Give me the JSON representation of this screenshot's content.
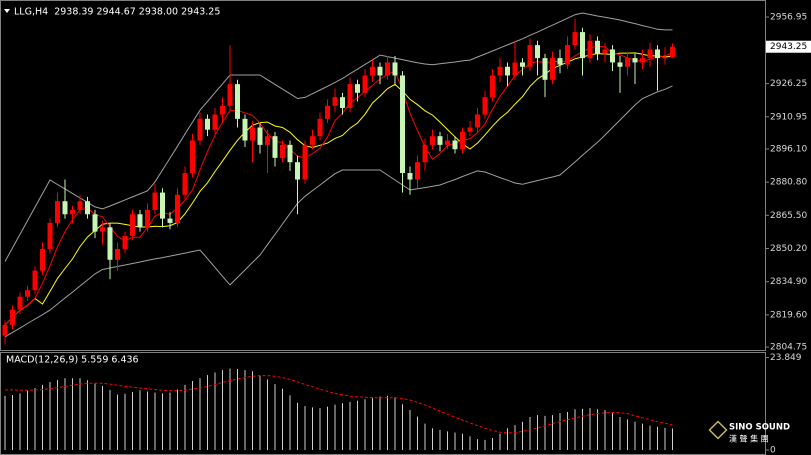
{
  "chart_data": [
    {
      "type": "candlestick",
      "title": "LLG,H4  2938.39 2944.67 2938.00 2943.25",
      "up_color": "#ff0000",
      "down_color": "#c6f5b4",
      "open": [
        2810,
        2815,
        2822,
        2828,
        2831,
        2840,
        2850,
        2862,
        2872,
        2866,
        2868,
        2872,
        2866,
        2858,
        2860,
        2845,
        2850,
        2856,
        2866,
        2860,
        2868,
        2876,
        2864,
        2862,
        2875,
        2885,
        2900,
        2910,
        2905,
        2912,
        2916,
        2926,
        2910,
        2900,
        2906,
        2898,
        2902,
        2892,
        2898,
        2890,
        2882,
        2898,
        2902,
        2910,
        2916,
        2920,
        2915,
        2926,
        2922,
        2930,
        2934,
        2930,
        2936,
        2930,
        2885,
        2882,
        2890,
        2898,
        2902,
        2898,
        2900,
        2896,
        2904,
        2906,
        2912,
        2920,
        2930,
        2934,
        2930,
        2936,
        2934,
        2944,
        2938,
        2928,
        2938,
        2935,
        2944,
        2950,
        2938,
        2946,
        2940,
        2942,
        2936,
        2934,
        2938,
        2936,
        2938,
        2942,
        2938,
        2938.39
      ],
      "high": [
        2817,
        2824,
        2830,
        2833,
        2842,
        2853,
        2864,
        2876,
        2882,
        2870,
        2875,
        2874,
        2868,
        2863,
        2862,
        2853,
        2858,
        2868,
        2868,
        2871,
        2880,
        2878,
        2867,
        2878,
        2888,
        2903,
        2913,
        2912,
        2915,
        2920,
        2944,
        2928,
        2912,
        2909,
        2908,
        2905,
        2904,
        2900,
        2900,
        2893,
        2900,
        2905,
        2913,
        2919,
        2924,
        2922,
        2929,
        2928,
        2933,
        2937,
        2936,
        2939,
        2939,
        2932,
        2888,
        2893,
        2901,
        2905,
        2904,
        2903,
        2902,
        2906,
        2909,
        2915,
        2923,
        2933,
        2938,
        2936,
        2946,
        2938,
        2947,
        2946,
        2940,
        2941,
        2942,
        2948,
        2956,
        2952,
        2949,
        2948,
        2945,
        2944,
        2939,
        2941,
        2940,
        2942,
        2945,
        2944,
        2943,
        2944.67
      ],
      "low": [
        2806,
        2813,
        2820,
        2826,
        2829,
        2838,
        2848,
        2860,
        2864,
        2862,
        2866,
        2864,
        2855,
        2852,
        2836,
        2840,
        2848,
        2854,
        2858,
        2858,
        2866,
        2860,
        2859,
        2860,
        2873,
        2883,
        2898,
        2902,
        2903,
        2908,
        2914,
        2906,
        2897,
        2890,
        2894,
        2885,
        2888,
        2890,
        2886,
        2866,
        2880,
        2896,
        2900,
        2908,
        2913,
        2912,
        2913,
        2918,
        2920,
        2927,
        2926,
        2928,
        2926,
        2876,
        2875,
        2878,
        2886,
        2896,
        2895,
        2896,
        2894,
        2894,
        2902,
        2904,
        2910,
        2918,
        2927,
        2925,
        2928,
        2930,
        2932,
        2930,
        2920,
        2926,
        2931,
        2933,
        2942,
        2930,
        2936,
        2937,
        2936,
        2932,
        2922,
        2930,
        2926,
        2933,
        2934,
        2923,
        2935,
        2938.0
      ],
      "close": [
        2815,
        2822,
        2828,
        2831,
        2840,
        2850,
        2862,
        2872,
        2866,
        2868,
        2872,
        2866,
        2858,
        2860,
        2845,
        2850,
        2856,
        2866,
        2860,
        2868,
        2876,
        2864,
        2862,
        2875,
        2885,
        2900,
        2910,
        2905,
        2912,
        2916,
        2926,
        2910,
        2900,
        2906,
        2898,
        2902,
        2892,
        2898,
        2890,
        2882,
        2898,
        2902,
        2910,
        2916,
        2920,
        2915,
        2926,
        2922,
        2930,
        2934,
        2930,
        2936,
        2930,
        2885,
        2882,
        2890,
        2898,
        2902,
        2898,
        2900,
        2896,
        2904,
        2906,
        2912,
        2920,
        2930,
        2934,
        2930,
        2936,
        2934,
        2944,
        2938,
        2928,
        2938,
        2935,
        2944,
        2950,
        2938,
        2946,
        2940,
        2942,
        2936,
        2934,
        2938,
        2936,
        2938,
        2942,
        2938,
        2938.39,
        2943.25
      ],
      "series": [
        {
          "color": "#a0a0a0",
          "values": [
            2844.2,
            2850.5,
            2856.7,
            2863,
            2869.3,
            2875.5,
            2881.8,
            2879.7,
            2877.7,
            2875.6,
            2873.5,
            2871.5,
            2869.4,
            2868.5,
            2869.8,
            2871.2,
            2872.6,
            2874,
            2875.4,
            2876.8,
            2880.9,
            2886.4,
            2891.9,
            2897.4,
            2903,
            2908.5,
            2914,
            2918,
            2922.1,
            2926.1,
            2930.2,
            2930.2,
            2930.2,
            2930.2,
            2930.2,
            2928,
            2925.9,
            2923.7,
            2921.6,
            2919.4,
            2919.9,
            2921.6,
            2923.3,
            2925,
            2926.8,
            2928.6,
            2930.8,
            2932.9,
            2935.1,
            2937.2,
            2939.4,
            2938.7,
            2938,
            2937.3,
            2936.6,
            2935.9,
            2935.3,
            2934.9,
            2935.4,
            2935.8,
            2936.2,
            2936.7,
            2937.1,
            2938.5,
            2939.9,
            2941.3,
            2942.7,
            2944.1,
            2945.5,
            2946.9,
            2948.5,
            2950,
            2951.6,
            2953.2,
            2954.8,
            2956.4,
            2958,
            2958.8,
            2958.1,
            2957.4,
            2956.8,
            2956.2,
            2955.6,
            2954.7,
            2953.9,
            2953,
            2952.2,
            2951.3,
            2951,
            2951
          ]
        },
        {
          "color": "#a0a0a0",
          "values": [
            2809.4,
            2811.5,
            2813.5,
            2815.6,
            2817.7,
            2819.7,
            2821.8,
            2824.6,
            2827.4,
            2830.1,
            2832.9,
            2835.7,
            2838.5,
            2840.5,
            2841.2,
            2841.9,
            2842.6,
            2843.3,
            2844,
            2844.7,
            2845.4,
            2846,
            2846.7,
            2847.4,
            2848.1,
            2848.8,
            2849.5,
            2845.5,
            2841.5,
            2837.4,
            2833.4,
            2836.9,
            2840.3,
            2843.8,
            2847.2,
            2852,
            2856.7,
            2861.5,
            2866.3,
            2871,
            2874.3,
            2876.9,
            2879.5,
            2882.1,
            2884.7,
            2886.4,
            2886.4,
            2886.4,
            2886.4,
            2886.4,
            2886.4,
            2884.1,
            2881.8,
            2879.5,
            2877.2,
            2877.8,
            2878.3,
            2878.9,
            2879.5,
            2880.8,
            2882,
            2883.4,
            2884.7,
            2886,
            2885.5,
            2884.2,
            2882.9,
            2881.7,
            2880.4,
            2879.8,
            2880.7,
            2881.5,
            2882.4,
            2883.2,
            2884.1,
            2887.1,
            2890.1,
            2893.2,
            2896.2,
            2899.2,
            2902.5,
            2906,
            2909.4,
            2912.9,
            2916.4,
            2919.4,
            2920.9,
            2922.4,
            2923.6,
            2925.2
          ]
        },
        {
          "color": "#ffff00",
          "values": [
            2815,
            2818.5,
            2821.7,
            2824,
            2827.2,
            2824.6,
            2830.4,
            2836.4,
            2841,
            2845.4,
            2851.1,
            2855.5,
            2858.5,
            2861.4,
            2861.9,
            2861.9,
            2861.3,
            2860.7,
            2860.1,
            2860.1,
            2860.5,
            2860.3,
            2860.7,
            2862.2,
            2866.2,
            2871.2,
            2876.6,
            2880.5,
            2885.7,
            2890.5,
            2895.5,
            2900.1,
            2903.9,
            2907,
            2908.3,
            2908.5,
            2906.7,
            2906,
            2903.8,
            2900.4,
            2897.6,
            2896.8,
            2897.8,
            2898.8,
            2901,
            2902.3,
            2905.7,
            2908.1,
            2912.1,
            2917.3,
            2920.5,
            2923.9,
            2925.9,
            2922.8,
            2919,
            2916.5,
            2913.7,
            2911.7,
            2908.5,
            2905.1,
            2901.7,
            2898.5,
            2896.1,
            2898.8,
            2902.6,
            2906.6,
            2910.2,
            2913,
            2916.8,
            2920.2,
            2925,
            2928.4,
            2930.6,
            2933.2,
            2934.7,
            2936.1,
            2937.7,
            2938.5,
            2939.5,
            2940.1,
            2939.9,
            2939.7,
            2940.3,
            2940.3,
            2940.4,
            2939.8,
            2939,
            2939,
            2938.5,
            2938.9
          ]
        },
        {
          "color": "#ff0000",
          "values": [
            2815,
            2818.5,
            2821.7,
            2824,
            2827.2,
            2834.2,
            2842.2,
            2851,
            2858,
            2863.6,
            2868,
            2868.8,
            2866,
            2864.8,
            2860.2,
            2855.8,
            2853.8,
            2855.4,
            2855.4,
            2860,
            2865.2,
            2866.8,
            2866,
            2869,
            2872.4,
            2877.2,
            2886.4,
            2895,
            2902.4,
            2908.6,
            2913.8,
            2913.8,
            2912.8,
            2911.6,
            2908,
            2903.2,
            2899.6,
            2899.2,
            2896,
            2892.8,
            2892,
            2894,
            2896.4,
            2901.6,
            2909.2,
            2912.6,
            2917.4,
            2919.8,
            2922.6,
            2925.4,
            2928.4,
            2930.4,
            2932,
            2923,
            2912.6,
            2904.6,
            2897,
            2891.4,
            2894,
            2897.6,
            2898.8,
            2900,
            2900.8,
            2903.6,
            2907.6,
            2914.4,
            2920.4,
            2925.2,
            2930,
            2932.8,
            2935.6,
            2936.4,
            2936,
            2936.4,
            2936.6,
            2936.6,
            2939,
            2941,
            2942.6,
            2943.6,
            2943.2,
            2940.4,
            2939.6,
            2938,
            2937.2,
            2936.4,
            2937.6,
            2938.4,
            2939,
            2940.6
          ]
        }
      ],
      "last_price": 2943.25,
      "ylim": [
        2803.4,
        2964.8
      ],
      "yticks": [
        2956.95,
        2926.25,
        2910.95,
        {
          "value": 2896.1,
          "label": "2896.10"
        },
        {
          "value": 2880.8,
          "label": "2880.80"
        },
        {
          "value": 2865.5,
          "label": "2865.50"
        },
        {
          "value": 2850.2,
          "label": "2850.20"
        },
        {
          "value": 2834.9,
          "label": "2834.90"
        },
        {
          "value": 2819.6,
          "label": "2819.60"
        },
        2804.75
      ]
    },
    {
      "type": "macd",
      "title": "MACD(12,26,9) 5.559 6.436",
      "series": [
        {
          "style": "histogram",
          "color": "#d0d0d0",
          "values": [
            14,
            14.2,
            14.6,
            15.3,
            16,
            16.8,
            17.5,
            18.1,
            18.5,
            18.5,
            18.5,
            18,
            17.2,
            16.5,
            15.5,
            14.3,
            14.5,
            15,
            15.4,
            15.1,
            14.8,
            14.6,
            14.8,
            15.6,
            16.8,
            17.8,
            18.5,
            19.3,
            20,
            20.6,
            21,
            20.9,
            20.6,
            20.3,
            19.3,
            18.2,
            17,
            15.8,
            14.1,
            12.2,
            11.3,
            11,
            10.8,
            11.2,
            11.7,
            12.1,
            12.4,
            12.7,
            13.1,
            13.5,
            13.8,
            14,
            13.6,
            11.8,
            10.3,
            8.6,
            6.8,
            5.6,
            5.2,
            4.8,
            4.5,
            4.2,
            3.5,
            2.8,
            2.6,
            3.1,
            4.2,
            5.6,
            6.4,
            7.3,
            8.5,
            9,
            8.8,
            9,
            9.5,
            9.8,
            10.5,
            10.6,
            10.8,
            10.5,
            10.3,
            9.5,
            8.5,
            7.9,
            7.3,
            6.8,
            6.3,
            6,
            5.7,
            5.559
          ]
        },
        {
          "style": "dashed",
          "color": "#ff0000",
          "values": [
            15.5,
            15.5,
            15.4,
            15.4,
            15.5,
            15.6,
            15.8,
            16.1,
            16.4,
            16.7,
            17,
            17.2,
            17.2,
            17.2,
            17,
            16.7,
            16.4,
            16.2,
            16,
            15.8,
            15.6,
            15.4,
            15.3,
            15.3,
            15.4,
            15.7,
            16,
            16.4,
            16.9,
            17.4,
            17.9,
            18.3,
            18.7,
            19,
            19.2,
            19.2,
            19,
            18.7,
            18.2,
            17.6,
            16.9,
            16.3,
            15.7,
            15.1,
            14.6,
            14.2,
            13.9,
            13.7,
            13.6,
            13.5,
            13.5,
            13.5,
            13.5,
            13.3,
            12.9,
            12.3,
            11.6,
            10.8,
            10,
            9.2,
            8.4,
            7.7,
            7,
            6.3,
            5.6,
            5,
            4.6,
            4.4,
            4.5,
            4.8,
            5.2,
            5.7,
            6.2,
            6.8,
            7.3,
            7.8,
            8.3,
            8.7,
            9.1,
            9.4,
            9.6,
            9.7,
            9.6,
            9.4,
            8.8,
            8.3,
            7.8,
            7.3,
            6.9,
            6.436
          ]
        }
      ],
      "ylim": [
        0,
        24.5
      ],
      "yticks": [
        23.849,
        0
      ]
    }
  ],
  "logo": {
    "text": "SINO SOUND",
    "subtext": "漢 聲 集 團"
  }
}
